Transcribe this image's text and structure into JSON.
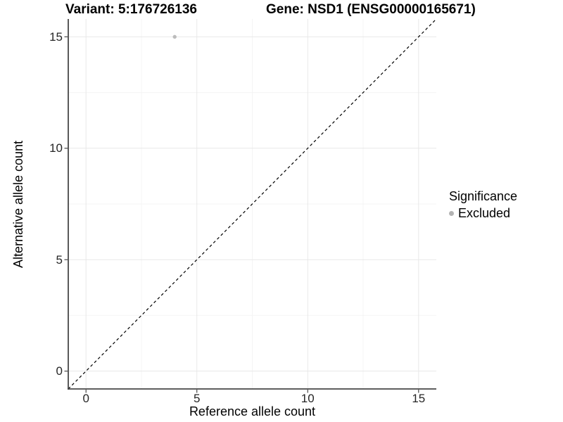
{
  "chart_data": {
    "type": "scatter",
    "title_variant": "Variant: 5:176726136",
    "title_gene": "Gene: NSD1 (ENSG00000165671)",
    "xlabel": "Reference allele count",
    "ylabel": "Alternative allele count",
    "xlim": [
      -0.8,
      15.8
    ],
    "ylim": [
      -0.8,
      15.8
    ],
    "x_ticks": [
      0,
      5,
      10,
      15
    ],
    "x_tick_labels": [
      "0",
      "5",
      "10",
      "15"
    ],
    "y_ticks": [
      0,
      5,
      10,
      15
    ],
    "y_tick_labels": [
      "0",
      "5",
      "10",
      "15"
    ],
    "minor_breaks": [
      2.5,
      7.5,
      12.5
    ],
    "grid": true,
    "reference_line": {
      "slope": 1,
      "intercept": 0,
      "style": "dashed",
      "color": "#000000"
    },
    "series": [
      {
        "name": "Excluded",
        "color": "#bcbcbc",
        "points": [
          {
            "x": 4,
            "y": 15
          }
        ]
      }
    ],
    "legend": {
      "title": "Significance",
      "position": "right",
      "entries": [
        {
          "label": "Excluded",
          "color": "#b3b3b3"
        }
      ]
    }
  },
  "colors": {
    "background": "#ffffff",
    "grid_major": "#e8e8e8",
    "grid_minor": "#f4f4f4",
    "axis_line": "#474747",
    "tick_mark": "#474747",
    "tick_text": "#262626",
    "title_text": "#000000",
    "dashed_line": "#000000",
    "excluded_point": "#bcbcbc"
  }
}
